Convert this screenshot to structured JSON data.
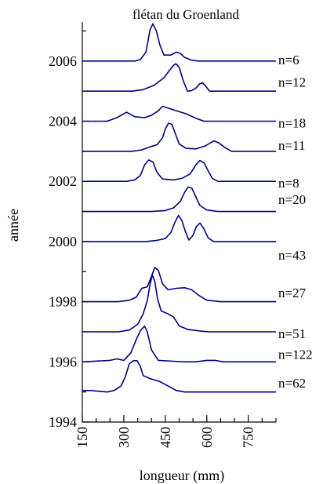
{
  "chart_data": {
    "type": "line",
    "title": "flétan du Groenland",
    "xlabel": "longueur (mm)",
    "ylabel": "année",
    "xlim": [
      150,
      850
    ],
    "ylim": [
      1994,
      2007.3
    ],
    "x_ticks": [
      "150",
      "300",
      "450",
      "600",
      "750"
    ],
    "x_tick_values": [
      150,
      300,
      450,
      600,
      750
    ],
    "x_minor_step": 50,
    "y_ticks": [
      "1994",
      "1996",
      "1998",
      "2000",
      "2002",
      "2004",
      "2006"
    ],
    "y_tick_values": [
      1994,
      1996,
      1998,
      2000,
      2002,
      2004,
      2006
    ],
    "y_minor_step": 1,
    "line_color": "#000080",
    "series": [
      {
        "year": 2006,
        "label": "n=6",
        "label_y": 2006.05,
        "points": [
          [
            150,
            0
          ],
          [
            340,
            0
          ],
          [
            360,
            0.05
          ],
          [
            380,
            0.3
          ],
          [
            395,
            1.05
          ],
          [
            405,
            1.25
          ],
          [
            418,
            1.0
          ],
          [
            430,
            0.55
          ],
          [
            445,
            0.2
          ],
          [
            470,
            0.2
          ],
          [
            490,
            0.3
          ],
          [
            505,
            0.25
          ],
          [
            520,
            0.12
          ],
          [
            545,
            0.03
          ],
          [
            570,
            0
          ],
          [
            850,
            0
          ]
        ]
      },
      {
        "year": 2005,
        "label": "n=12",
        "label_y": 2005.3,
        "points": [
          [
            150,
            0
          ],
          [
            330,
            0
          ],
          [
            370,
            0.05
          ],
          [
            410,
            0.2
          ],
          [
            445,
            0.45
          ],
          [
            465,
            0.7
          ],
          [
            478,
            0.85
          ],
          [
            488,
            0.92
          ],
          [
            500,
            0.8
          ],
          [
            515,
            0.35
          ],
          [
            530,
            0
          ],
          [
            545,
            0.02
          ],
          [
            560,
            0.1
          ],
          [
            575,
            0.25
          ],
          [
            585,
            0.28
          ],
          [
            595,
            0.18
          ],
          [
            610,
            0
          ],
          [
            850,
            0
          ]
        ]
      },
      {
        "year": 2004,
        "label": "n=18",
        "label_y": 2003.95,
        "points": [
          [
            150,
            0
          ],
          [
            240,
            0
          ],
          [
            275,
            0.12
          ],
          [
            310,
            0.3
          ],
          [
            340,
            0.15
          ],
          [
            375,
            0.12
          ],
          [
            400,
            0.2
          ],
          [
            425,
            0.35
          ],
          [
            440,
            0.5
          ],
          [
            460,
            0.44
          ],
          [
            490,
            0.35
          ],
          [
            525,
            0.25
          ],
          [
            560,
            0.1
          ],
          [
            590,
            0
          ],
          [
            850,
            0
          ]
        ]
      },
      {
        "year": 2003,
        "label": "n=11",
        "label_y": 2003.2,
        "points": [
          [
            150,
            0
          ],
          [
            330,
            0
          ],
          [
            365,
            0.05
          ],
          [
            395,
            0.15
          ],
          [
            420,
            0.22
          ],
          [
            440,
            0.45
          ],
          [
            450,
            0.75
          ],
          [
            462,
            0.95
          ],
          [
            474,
            0.9
          ],
          [
            486,
            0.6
          ],
          [
            500,
            0.25
          ],
          [
            525,
            0.1
          ],
          [
            560,
            0.08
          ],
          [
            595,
            0.18
          ],
          [
            625,
            0.35
          ],
          [
            640,
            0.3
          ],
          [
            655,
            0.2
          ],
          [
            670,
            0.1
          ],
          [
            690,
            0
          ],
          [
            850,
            0
          ]
        ]
      },
      {
        "year": 2002,
        "label": "n=8",
        "label_y": 2001.95,
        "points": [
          [
            150,
            0
          ],
          [
            310,
            0
          ],
          [
            340,
            0.05
          ],
          [
            360,
            0.2
          ],
          [
            375,
            0.55
          ],
          [
            390,
            0.72
          ],
          [
            405,
            0.65
          ],
          [
            420,
            0.3
          ],
          [
            440,
            0.08
          ],
          [
            480,
            0.05
          ],
          [
            510,
            0.1
          ],
          [
            540,
            0.25
          ],
          [
            560,
            0.55
          ],
          [
            575,
            0.7
          ],
          [
            590,
            0.62
          ],
          [
            605,
            0.35
          ],
          [
            620,
            0.1
          ],
          [
            640,
            0
          ],
          [
            850,
            0
          ]
        ]
      },
      {
        "year": 2001,
        "label": "n=20",
        "label_y": 2001.4,
        "points": [
          [
            150,
            0
          ],
          [
            400,
            0
          ],
          [
            450,
            0.03
          ],
          [
            480,
            0.12
          ],
          [
            505,
            0.35
          ],
          [
            520,
            0.65
          ],
          [
            533,
            0.82
          ],
          [
            546,
            0.78
          ],
          [
            560,
            0.5
          ],
          [
            575,
            0.2
          ],
          [
            600,
            0.05
          ],
          [
            640,
            0
          ],
          [
            850,
            0
          ]
        ]
      },
      {
        "year": 2000,
        "label": "n=43",
        "label_y": 1999.55,
        "points": [
          [
            150,
            0
          ],
          [
            380,
            0
          ],
          [
            420,
            0.04
          ],
          [
            450,
            0.1
          ],
          [
            470,
            0.3
          ],
          [
            485,
            0.65
          ],
          [
            498,
            0.88
          ],
          [
            510,
            0.7
          ],
          [
            522,
            0.35
          ],
          [
            535,
            0.05
          ],
          [
            550,
            0.2
          ],
          [
            562,
            0.5
          ],
          [
            575,
            0.62
          ],
          [
            588,
            0.45
          ],
          [
            605,
            0.12
          ],
          [
            625,
            0
          ],
          [
            850,
            0
          ]
        ]
      },
      {
        "year": 1998,
        "label": "n=27",
        "label_y": 1998.3,
        "points": [
          [
            150,
            0
          ],
          [
            280,
            0
          ],
          [
            320,
            0.05
          ],
          [
            345,
            0.15
          ],
          [
            365,
            0.45
          ],
          [
            385,
            0.5
          ],
          [
            400,
            0.85
          ],
          [
            412,
            1.15
          ],
          [
            425,
            1.05
          ],
          [
            440,
            0.6
          ],
          [
            460,
            0.4
          ],
          [
            490,
            0.45
          ],
          [
            520,
            0.47
          ],
          [
            545,
            0.4
          ],
          [
            570,
            0.22
          ],
          [
            600,
            0.05
          ],
          [
            650,
            0
          ],
          [
            850,
            0
          ]
        ]
      },
      {
        "year": 1997,
        "label": "n=51",
        "label_y": 1996.95,
        "points": [
          [
            150,
            0
          ],
          [
            280,
            0
          ],
          [
            320,
            0.06
          ],
          [
            350,
            0.25
          ],
          [
            370,
            0.6
          ],
          [
            385,
            1.05
          ],
          [
            395,
            1.6
          ],
          [
            403,
            1.9
          ],
          [
            412,
            1.7
          ],
          [
            422,
            1.1
          ],
          [
            435,
            0.7
          ],
          [
            460,
            0.6
          ],
          [
            480,
            0.5
          ],
          [
            500,
            0.2
          ],
          [
            530,
            0.08
          ],
          [
            580,
            0.02
          ],
          [
            610,
            0
          ],
          [
            850,
            0
          ]
        ]
      },
      {
        "year": 1996,
        "label": "n=122",
        "label_y": 1996.25,
        "points": [
          [
            150,
            0
          ],
          [
            250,
            0.05
          ],
          [
            275,
            0.1
          ],
          [
            300,
            0.05
          ],
          [
            325,
            0.3
          ],
          [
            345,
            0.75
          ],
          [
            360,
            1.05
          ],
          [
            375,
            1.2
          ],
          [
            385,
            1.0
          ],
          [
            400,
            0.4
          ],
          [
            425,
            0.05
          ],
          [
            480,
            0.02
          ],
          [
            520,
            0
          ],
          [
            560,
            0
          ],
          [
            600,
            0.05
          ],
          [
            630,
            0.05
          ],
          [
            660,
            0
          ],
          [
            850,
            0
          ]
        ]
      },
      {
        "year": 1995,
        "label": "n=62",
        "label_y": 1995.3,
        "points": [
          [
            150,
            0.05
          ],
          [
            180,
            0.05
          ],
          [
            215,
            0.02
          ],
          [
            240,
            0
          ],
          [
            265,
            0.05
          ],
          [
            290,
            0.2
          ],
          [
            305,
            0.5
          ],
          [
            320,
            0.95
          ],
          [
            335,
            1.05
          ],
          [
            348,
            1.05
          ],
          [
            360,
            0.85
          ],
          [
            370,
            0.55
          ],
          [
            395,
            0.45
          ],
          [
            430,
            0.35
          ],
          [
            460,
            0.2
          ],
          [
            490,
            0.05
          ],
          [
            520,
            0
          ],
          [
            850,
            0
          ]
        ]
      }
    ]
  }
}
